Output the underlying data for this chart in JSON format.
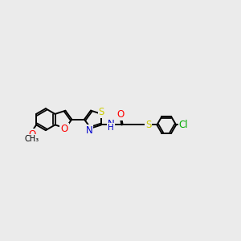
{
  "bg_color": "#ebebeb",
  "bond_color": "#000000",
  "colors": {
    "O": "#ff0000",
    "N": "#0000cc",
    "S": "#cccc00",
    "Cl": "#00aa00",
    "C": "#000000"
  },
  "font_size": 8.5,
  "line_width": 1.4
}
